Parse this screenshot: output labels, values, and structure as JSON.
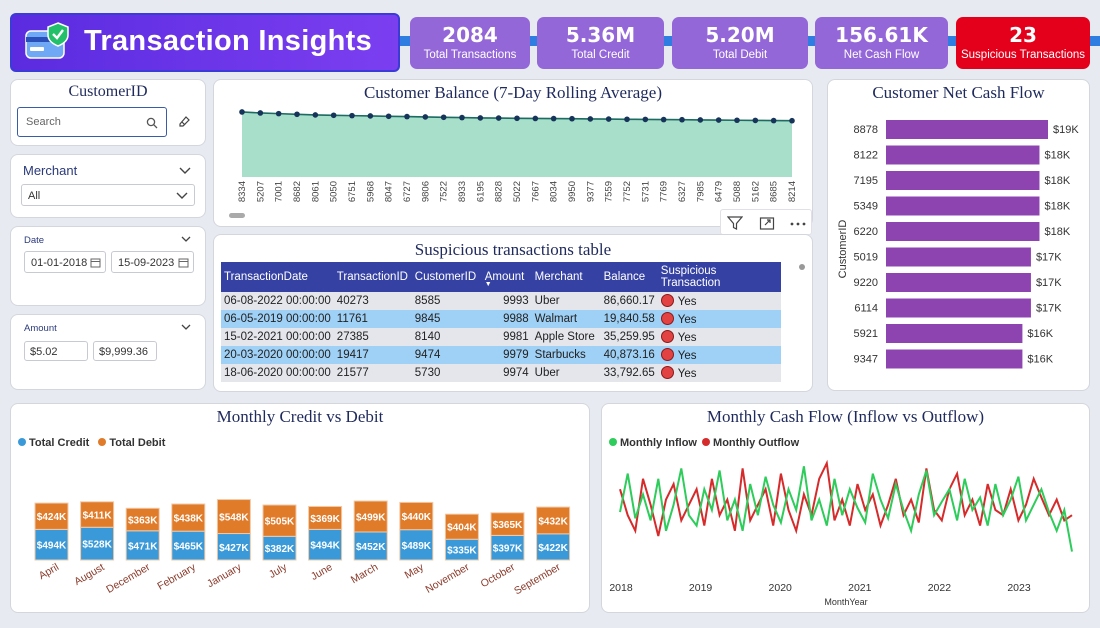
{
  "header": {
    "title": "Transaction Insights",
    "logo_icon": "credit-card-shield-icon"
  },
  "kpis": [
    {
      "value": "2084",
      "label": "Total Transactions"
    },
    {
      "value": "5.36M",
      "label": "Total Credit"
    },
    {
      "value": "5.20M",
      "label": "Total Debit"
    },
    {
      "value": "156.61K",
      "label": "Net Cash Flow"
    },
    {
      "value": "23",
      "label": "Suspicious Transactions"
    }
  ],
  "slicers": {
    "customer": {
      "title": "CustomerID",
      "placeholder": "Search"
    },
    "merchant": {
      "title": "Merchant",
      "selected": "All"
    },
    "date": {
      "title": "Date",
      "start": "01-01-2018",
      "end": "15-09-2023"
    },
    "amount": {
      "title": "Amount",
      "min": "$5.02",
      "max": "$9,999.36"
    }
  },
  "colors": {
    "accent": "#9467d8",
    "alert": "#e4001b",
    "credit": "#3a9ad9",
    "debit": "#e07b2a",
    "inflow": "#2ecc5a",
    "outflow": "#d62b2b",
    "bar": "#8e44b0",
    "area": "#a8dfca"
  },
  "table": {
    "title": "Suspicious transactions table",
    "columns": [
      "TransactionDate",
      "TransactionID",
      "CustomerID",
      "Amount",
      "Merchant",
      "Balance",
      "Suspicious Transaction"
    ],
    "rows": [
      [
        "06-08-2022 00:00:00",
        "40273",
        "8585",
        "9993",
        "Uber",
        "86,660.17",
        "Yes"
      ],
      [
        "06-05-2019 00:00:00",
        "11761",
        "9845",
        "9988",
        "Walmart",
        "19,840.58",
        "Yes"
      ],
      [
        "15-02-2021 00:00:00",
        "27385",
        "8140",
        "9981",
        "Apple Store",
        "35,259.95",
        "Yes"
      ],
      [
        "20-03-2020 00:00:00",
        "19417",
        "9474",
        "9979",
        "Starbucks",
        "40,873.16",
        "Yes"
      ],
      [
        "18-06-2020 00:00:00",
        "21577",
        "5730",
        "9974",
        "Uber",
        "33,792.65",
        "Yes"
      ]
    ]
  },
  "chart_data": [
    {
      "id": "balance",
      "type": "area",
      "title": "Customer Balance (7-Day Rolling Average)",
      "categories": [
        "8334",
        "5207",
        "7001",
        "8682",
        "8061",
        "5050",
        "6751",
        "5968",
        "8047",
        "6727",
        "9806",
        "7522",
        "8933",
        "6195",
        "8828",
        "5022",
        "7667",
        "8034",
        "9950",
        "9377",
        "7559",
        "7752",
        "5731",
        "7769",
        "6327",
        "7985",
        "6479",
        "5088",
        "5162",
        "8685",
        "8214"
      ],
      "values": [
        98,
        96.5,
        95.5,
        94.5,
        93.5,
        93,
        92.5,
        92,
        91.5,
        91,
        90.5,
        90,
        89.5,
        89,
        88.8,
        88.5,
        88.2,
        88,
        87.8,
        87.5,
        87.3,
        87,
        86.8,
        86.5,
        86.3,
        86,
        85.8,
        85.5,
        85.3,
        85,
        84.8
      ],
      "ylim": [
        0,
        110
      ]
    },
    {
      "id": "netcash",
      "type": "bar",
      "orientation": "horizontal",
      "title": "Customer Net Cash Flow",
      "ylabel": "CustomerID",
      "categories": [
        "8878",
        "8122",
        "7195",
        "5349",
        "6220",
        "5019",
        "9220",
        "6114",
        "5921",
        "9347"
      ],
      "values": [
        19,
        18,
        18,
        18,
        18,
        17,
        17,
        17,
        16,
        16
      ],
      "value_labels": [
        "$19K",
        "$18K",
        "$18K",
        "$18K",
        "$18K",
        "$17K",
        "$17K",
        "$17K",
        "$16K",
        "$16K"
      ]
    },
    {
      "id": "creditdebit",
      "type": "bar",
      "stacked": true,
      "title": "Monthly Credit vs Debit",
      "categories": [
        "April",
        "August",
        "December",
        "February",
        "January",
        "July",
        "June",
        "March",
        "May",
        "November",
        "October",
        "September"
      ],
      "series": [
        {
          "name": "Total Credit",
          "values": [
            494,
            528,
            471,
            465,
            427,
            382,
            494,
            452,
            489,
            335,
            397,
            422
          ],
          "labels": [
            "$494K",
            "$528K",
            "$471K",
            "$465K",
            "$427K",
            "$382K",
            "$494K",
            "$452K",
            "$489K",
            "$335K",
            "$397K",
            "$422K"
          ]
        },
        {
          "name": "Total Debit",
          "values": [
            424,
            411,
            363,
            438,
            548,
            505,
            369,
            499,
            440,
            404,
            365,
            432
          ],
          "labels": [
            "$424K",
            "$411K",
            "$363K",
            "$438K",
            "$548K",
            "$505K",
            "$369K",
            "$499K",
            "$440K",
            "$404K",
            "$365K",
            "$432K"
          ]
        }
      ]
    },
    {
      "id": "cashflow",
      "type": "line",
      "title": "Monthly Cash Flow (Inflow vs Outflow)",
      "xlabel": "MonthYear",
      "x_ticks": [
        "2018",
        "2019",
        "2020",
        "2021",
        "2022",
        "2023"
      ],
      "series": [
        {
          "name": "Monthly Inflow",
          "values": [
            48,
            85,
            42,
            65,
            40,
            80,
            30,
            55,
            90,
            45,
            35,
            70,
            50,
            88,
            40,
            60,
            30,
            75,
            45,
            82,
            55,
            38,
            70,
            50,
            92,
            40,
            60,
            35,
            80,
            45,
            70,
            52,
            38,
            85,
            60,
            42,
            75,
            50,
            30,
            65,
            88,
            45,
            58,
            70,
            40,
            80,
            50,
            62,
            35,
            75,
            45,
            60,
            82,
            40,
            55,
            70,
            48,
            30,
            50,
            10
          ]
        },
        {
          "name": "Monthly Outflow",
          "values": [
            70,
            45,
            30,
            80,
            55,
            25,
            60,
            75,
            40,
            55,
            70,
            35,
            80,
            45,
            60,
            30,
            90,
            40,
            55,
            70,
            35,
            85,
            50,
            30,
            65,
            45,
            80,
            95,
            40,
            60,
            35,
            75,
            50,
            65,
            35,
            55,
            80,
            45,
            60,
            38,
            90,
            50,
            40,
            70,
            85,
            45,
            60,
            35,
            75,
            50,
            45,
            70,
            40,
            55,
            80,
            62,
            45,
            60,
            40,
            45
          ]
        }
      ]
    }
  ]
}
